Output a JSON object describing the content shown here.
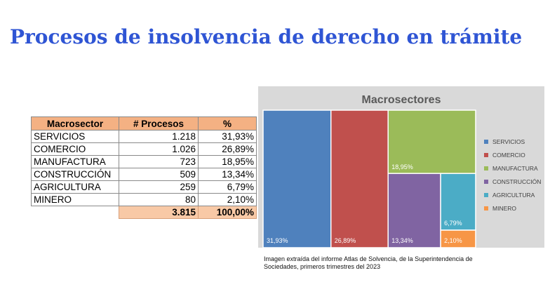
{
  "slide": {
    "title": "Procesos de insolvencia de derecho en trámite",
    "caption": "Imagen extraída del informe Atlas de Solvencia, de la Superintendencia de Sociedades, primeros trimestres del 2023"
  },
  "table": {
    "headers": [
      "Macrosector",
      "# Procesos",
      "%"
    ],
    "rows": [
      {
        "sector": "SERVICIOS",
        "procesos": "1.218",
        "pct": "31,93%"
      },
      {
        "sector": "COMERCIO",
        "procesos": "1.026",
        "pct": "26,89%"
      },
      {
        "sector": "MANUFACTURA",
        "procesos": "723",
        "pct": "18,95%"
      },
      {
        "sector": "CONSTRUCCIÓN",
        "procesos": "509",
        "pct": "13,34%"
      },
      {
        "sector": "AGRICULTURA",
        "procesos": "259",
        "pct": "6,79%"
      },
      {
        "sector": "MINERO",
        "procesos": "80",
        "pct": "2,10%"
      }
    ],
    "total_procesos": "3.815",
    "total_pct": "100,00%"
  },
  "chart_data": {
    "type": "treemap",
    "title": "Macrosectores",
    "legend_position": "right",
    "series": [
      {
        "name": "SERVICIOS",
        "value": 31.93,
        "label": "31,93%",
        "color": "#4f81bd"
      },
      {
        "name": "COMERCIO",
        "value": 26.89,
        "label": "26,89%",
        "color": "#c0504d"
      },
      {
        "name": "MANUFACTURA",
        "value": 18.95,
        "label": "18,95%",
        "color": "#9bbb59"
      },
      {
        "name": "CONSTRUCCIÓN",
        "value": 13.34,
        "label": "13,34%",
        "color": "#8064a2"
      },
      {
        "name": "AGRICULTURA",
        "value": 6.79,
        "label": "6,79%",
        "color": "#4bacc6"
      },
      {
        "name": "MINERO",
        "value": 2.1,
        "label": "2,10%",
        "color": "#f79646"
      }
    ]
  }
}
